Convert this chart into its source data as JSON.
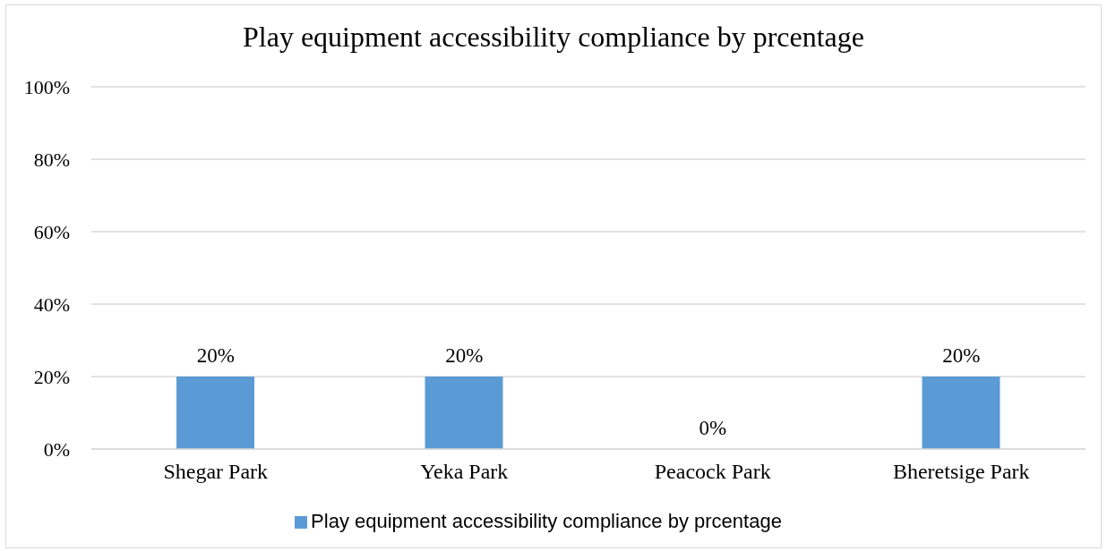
{
  "chart_data": {
    "type": "bar",
    "title": "Play equipment accessibility compliance by prcentage",
    "categories": [
      "Shegar Park",
      "Yeka Park",
      "Peacock Park",
      "Bheretsige Park"
    ],
    "series": [
      {
        "name": "Play equipment accessibility compliance by prcentage",
        "color": "#5b9bd5",
        "values": [
          20,
          20,
          0,
          20
        ],
        "value_labels": [
          "20%",
          "20%",
          "0%",
          "20%"
        ]
      }
    ],
    "ylim": [
      0,
      100
    ],
    "yticks": [
      {
        "value": 0,
        "label": "0%"
      },
      {
        "value": 20,
        "label": "20%"
      },
      {
        "value": 40,
        "label": "40%"
      },
      {
        "value": 60,
        "label": "60%"
      },
      {
        "value": 80,
        "label": "80%"
      },
      {
        "value": 100,
        "label": "100%"
      }
    ],
    "grid": "y",
    "legend": "bottom"
  }
}
